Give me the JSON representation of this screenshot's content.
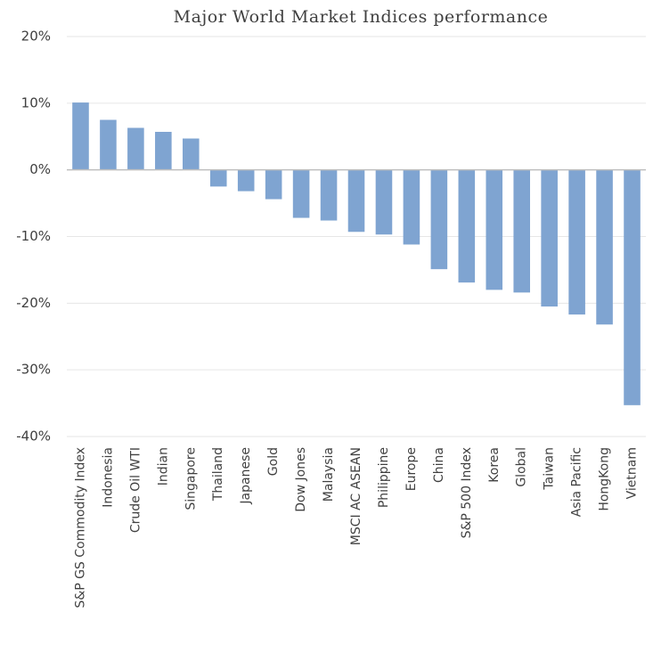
{
  "chart_data": {
    "type": "bar",
    "title": "Major World Market Indices performance",
    "categories": [
      "S&P GS Commodity Index",
      "Indonesia",
      "Crude Oil WTI",
      "Indian",
      "Singapore",
      "Thailand",
      "Japanese",
      "Gold",
      "Dow Jones",
      "Malaysia",
      "MSCI AC ASEAN",
      "Philippine",
      "Europe",
      "China",
      "S&P 500 Index",
      "Korea",
      "Global",
      "Taiwan",
      "Asia Pacific",
      "HongKong",
      "Vietnam"
    ],
    "values": [
      10.1,
      7.5,
      6.3,
      5.7,
      4.7,
      -2.5,
      -3.2,
      -4.4,
      -7.2,
      -7.6,
      -9.3,
      -9.7,
      -11.2,
      -14.9,
      -16.9,
      -18.0,
      -18.4,
      -20.5,
      -21.7,
      -23.2,
      -35.3
    ],
    "color": "#7fa4d1",
    "ylim": [
      -40,
      20
    ],
    "yticks": [
      {
        "value": -40,
        "label": "-40%"
      },
      {
        "value": -30,
        "label": "-30%"
      },
      {
        "value": -20,
        "label": "-20%"
      },
      {
        "value": -10,
        "label": "-10%"
      },
      {
        "value": 0,
        "label": "0%"
      },
      {
        "value": 10,
        "label": "10%"
      },
      {
        "value": 20,
        "label": "20%"
      }
    ],
    "grid": true
  }
}
